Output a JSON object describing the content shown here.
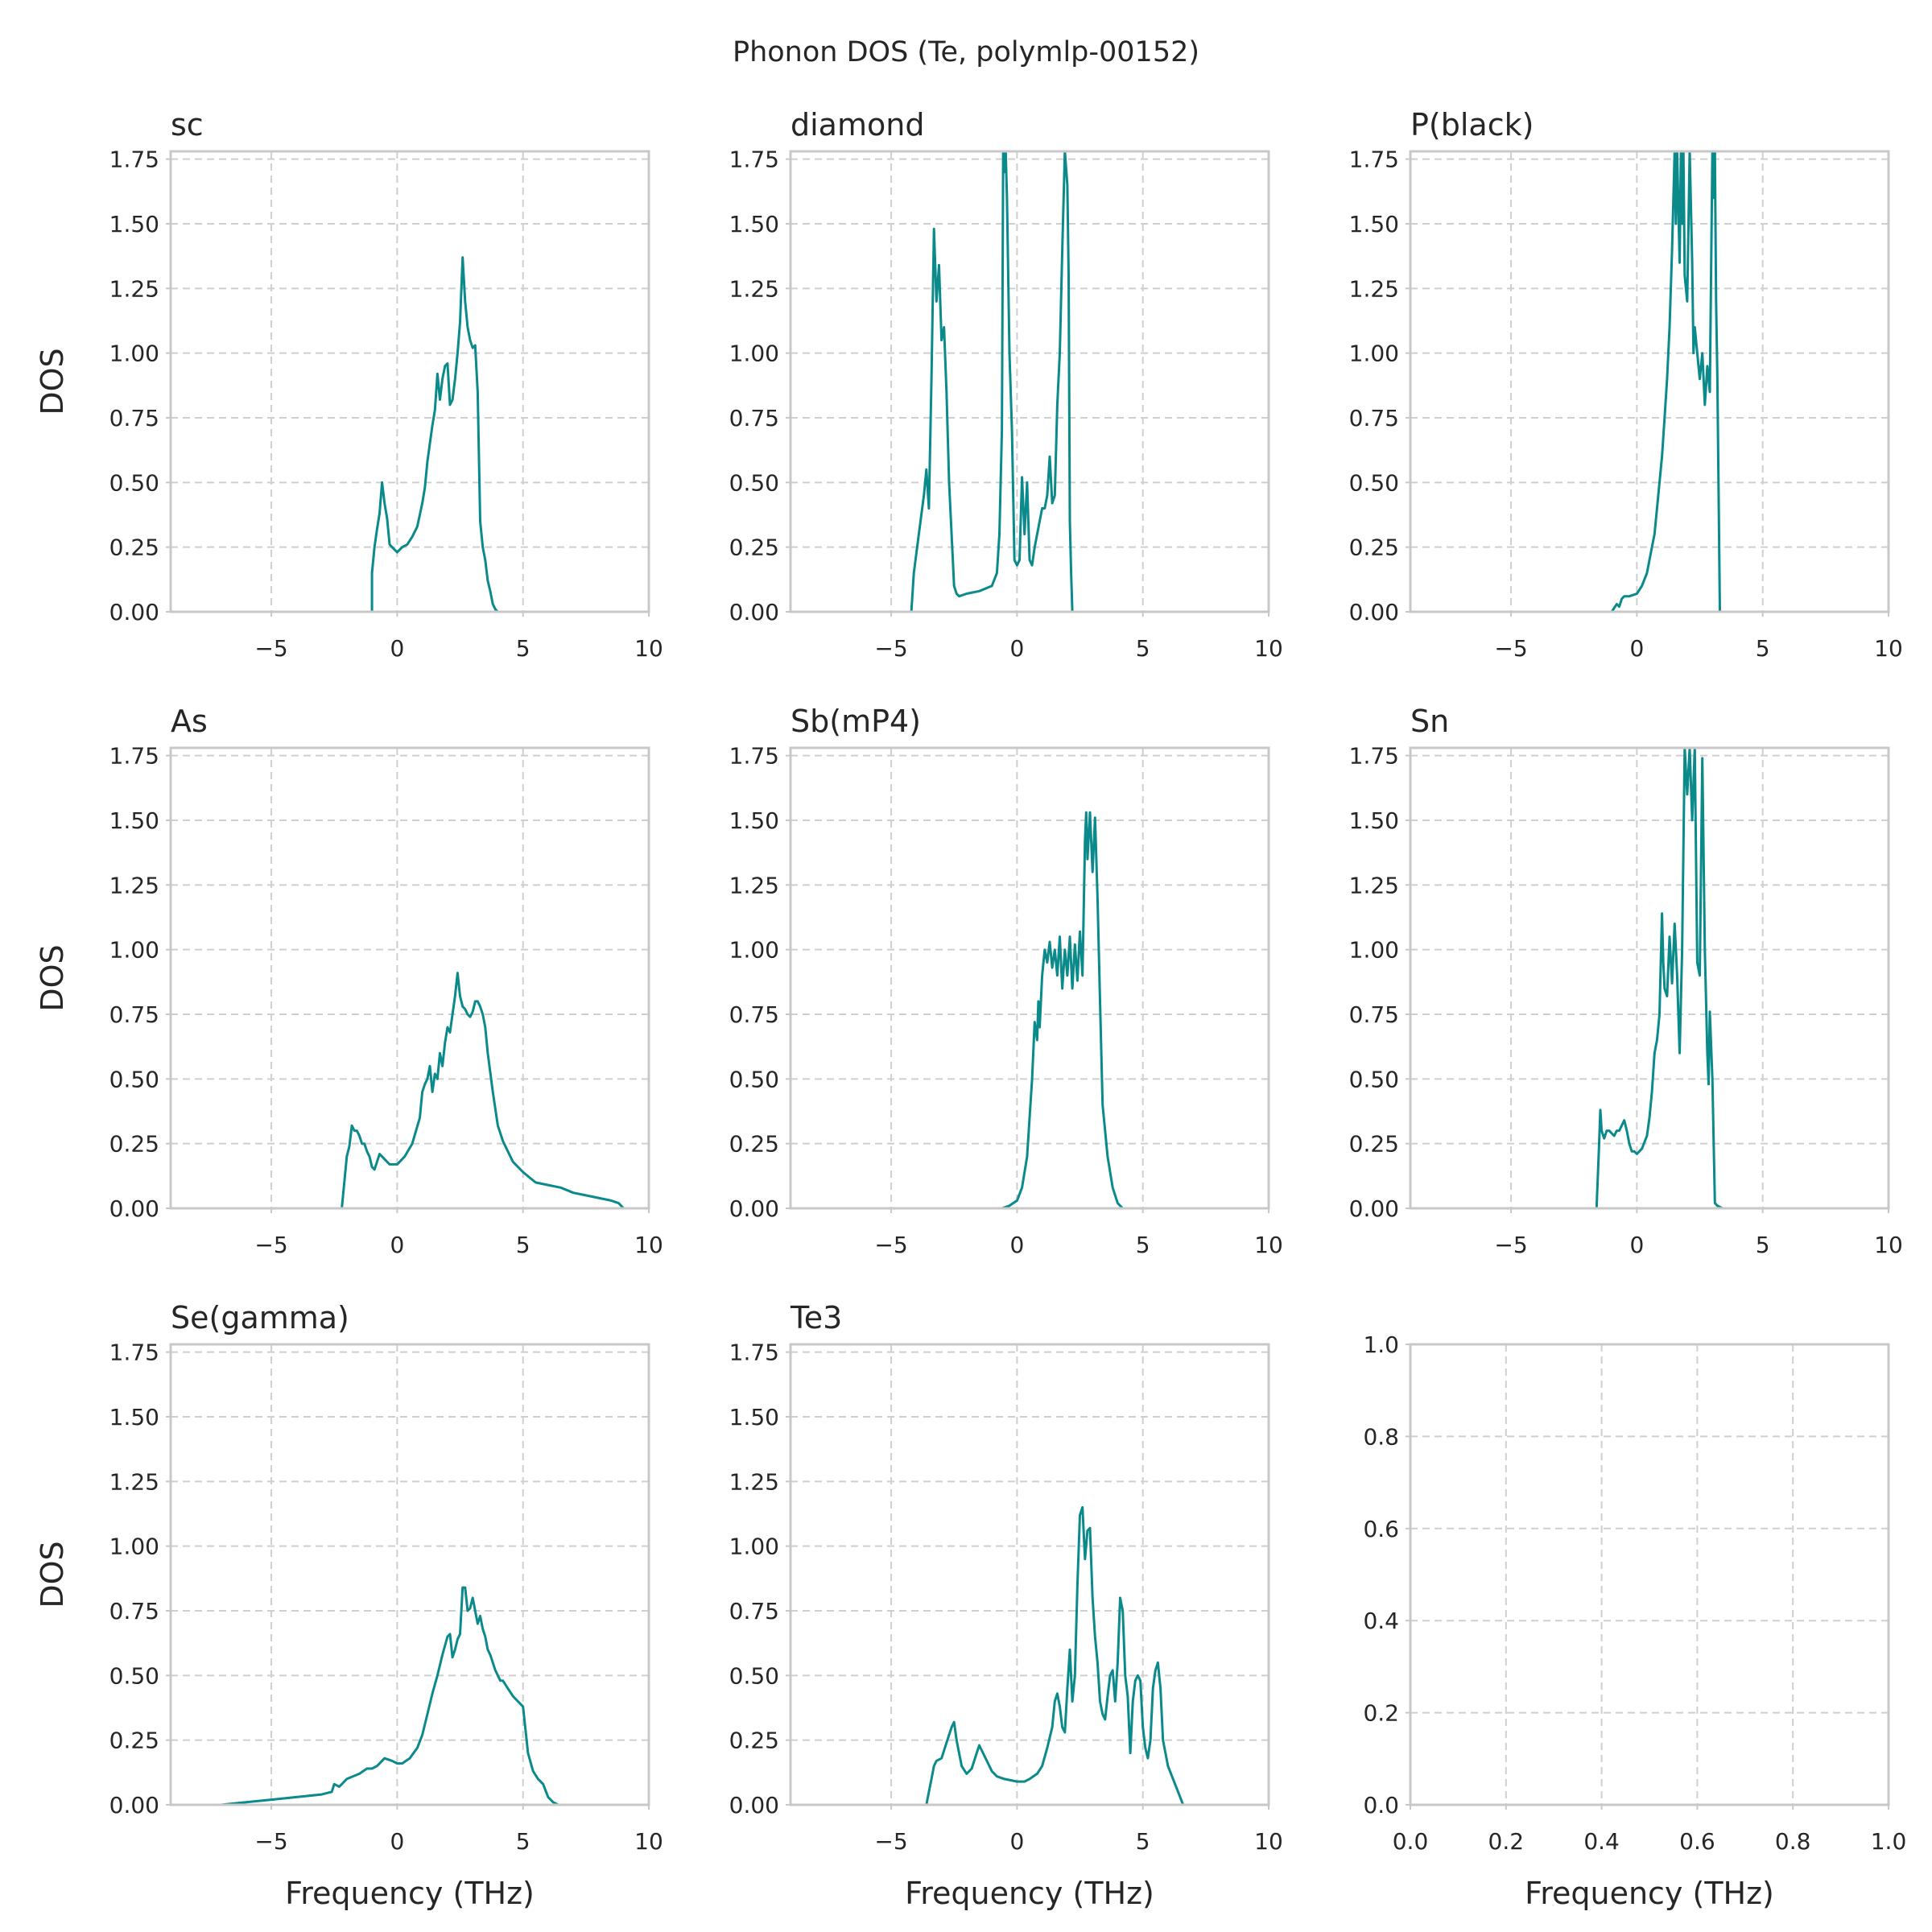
{
  "figure_title": "Phonon DOS (Te, polymlp-00152)",
  "colors": {
    "line": "#0a8a8a",
    "grid": "#cfcfcf",
    "frame": "#c8c8c8",
    "text": "#262626"
  },
  "chart_data": [
    {
      "type": "line",
      "title": "sc",
      "xlabel": "",
      "ylabel": "DOS",
      "xlim": [
        -9,
        10
      ],
      "ylim": [
        0,
        1.78
      ],
      "xticks": [
        -5,
        0,
        5,
        10
      ],
      "yticks": [
        0,
        0.25,
        0.5,
        0.75,
        1.0,
        1.25,
        1.5,
        1.75
      ],
      "xtick_labels": [
        "−5",
        "0",
        "5",
        "10"
      ],
      "ytick_labels": [
        "0.00",
        "0.25",
        "0.50",
        "0.75",
        "1.00",
        "1.25",
        "1.50",
        "1.75"
      ],
      "x": [
        -1.6,
        -1.0,
        -1.0,
        -0.9,
        -0.8,
        -0.7,
        -0.6,
        -0.5,
        -0.4,
        -0.3,
        -0.2,
        0.0,
        0.2,
        0.4,
        0.6,
        0.8,
        1.0,
        1.1,
        1.2,
        1.3,
        1.4,
        1.5,
        1.6,
        1.7,
        1.8,
        1.9,
        2.0,
        2.1,
        2.2,
        2.3,
        2.4,
        2.5,
        2.6,
        2.7,
        2.8,
        2.9,
        3.0,
        3.1,
        3.2,
        3.3,
        3.35,
        3.4,
        3.5,
        3.6,
        3.7,
        3.8,
        3.9,
        4.0,
        4.5
      ],
      "y": [
        0.0,
        0.0,
        0.15,
        0.25,
        0.32,
        0.38,
        0.5,
        0.42,
        0.36,
        0.26,
        0.25,
        0.23,
        0.25,
        0.26,
        0.29,
        0.33,
        0.42,
        0.48,
        0.58,
        0.65,
        0.72,
        0.78,
        0.92,
        0.82,
        0.9,
        0.95,
        0.96,
        0.8,
        0.82,
        0.9,
        1.0,
        1.12,
        1.37,
        1.2,
        1.1,
        1.05,
        1.02,
        1.03,
        0.85,
        0.35,
        0.3,
        0.25,
        0.2,
        0.12,
        0.08,
        0.03,
        0.01,
        0.0,
        0.0
      ]
    },
    {
      "type": "line",
      "title": "diamond",
      "xlabel": "",
      "ylabel": "",
      "xlim": [
        -9,
        10
      ],
      "ylim": [
        0,
        1.78
      ],
      "xticks": [
        -5,
        0,
        5,
        10
      ],
      "yticks": [
        0,
        0.25,
        0.5,
        0.75,
        1.0,
        1.25,
        1.5,
        1.75
      ],
      "xtick_labels": [
        "−5",
        "0",
        "5",
        "10"
      ],
      "ytick_labels": [
        "0.00",
        "0.25",
        "0.50",
        "0.75",
        "1.00",
        "1.25",
        "1.50",
        "1.75"
      ],
      "x": [
        -5.0,
        -4.2,
        -4.1,
        -3.9,
        -3.7,
        -3.6,
        -3.5,
        -3.4,
        -3.3,
        -3.2,
        -3.1,
        -3.0,
        -2.9,
        -2.8,
        -2.7,
        -2.6,
        -2.5,
        -2.4,
        -2.3,
        -2.0,
        -1.5,
        -1.0,
        -0.8,
        -0.7,
        -0.6,
        -0.55,
        -0.5,
        -0.45,
        -0.4,
        -0.3,
        -0.2,
        -0.1,
        0.0,
        0.1,
        0.2,
        0.3,
        0.4,
        0.5,
        0.6,
        0.7,
        0.8,
        0.9,
        1.0,
        1.1,
        1.2,
        1.3,
        1.4,
        1.5,
        1.6,
        1.7,
        1.8,
        1.9,
        2.0,
        2.05,
        2.1,
        2.15,
        2.2,
        2.3,
        2.8
      ],
      "y": [
        0.0,
        0.0,
        0.15,
        0.3,
        0.45,
        0.55,
        0.4,
        0.9,
        1.48,
        1.2,
        1.34,
        1.05,
        1.1,
        0.85,
        0.5,
        0.3,
        0.1,
        0.07,
        0.06,
        0.07,
        0.08,
        0.1,
        0.15,
        0.3,
        0.7,
        1.78,
        1.7,
        1.78,
        1.6,
        1.0,
        0.7,
        0.2,
        0.18,
        0.2,
        0.52,
        0.3,
        0.5,
        0.2,
        0.18,
        0.25,
        0.3,
        0.35,
        0.4,
        0.4,
        0.45,
        0.6,
        0.42,
        0.45,
        0.8,
        1.0,
        1.4,
        1.78,
        1.65,
        1.3,
        0.35,
        0.15,
        0.0,
        0.0,
        0.0
      ]
    },
    {
      "type": "line",
      "title": "P(black)",
      "xlabel": "",
      "ylabel": "",
      "xlim": [
        -9,
        10
      ],
      "ylim": [
        0,
        1.78
      ],
      "xticks": [
        -5,
        0,
        5,
        10
      ],
      "yticks": [
        0,
        0.25,
        0.5,
        0.75,
        1.0,
        1.25,
        1.5,
        1.75
      ],
      "xtick_labels": [
        "−5",
        "0",
        "5",
        "10"
      ],
      "ytick_labels": [
        "0.00",
        "0.25",
        "0.50",
        "0.75",
        "1.00",
        "1.25",
        "1.50",
        "1.75"
      ],
      "x": [
        -1.5,
        -1.0,
        -0.8,
        -0.7,
        -0.6,
        -0.5,
        -0.3,
        0.0,
        0.2,
        0.4,
        0.5,
        0.6,
        0.7,
        0.8,
        0.9,
        1.0,
        1.1,
        1.2,
        1.3,
        1.4,
        1.5,
        1.55,
        1.6,
        1.7,
        1.75,
        1.8,
        1.85,
        1.9,
        2.0,
        2.1,
        2.2,
        2.25,
        2.3,
        2.4,
        2.5,
        2.6,
        2.7,
        2.8,
        2.9,
        3.0,
        3.05,
        3.1,
        3.15,
        3.2,
        3.3,
        3.4,
        3.5,
        4.0
      ],
      "y": [
        0.0,
        0.0,
        0.03,
        0.02,
        0.05,
        0.06,
        0.06,
        0.07,
        0.1,
        0.15,
        0.2,
        0.25,
        0.3,
        0.4,
        0.5,
        0.6,
        0.75,
        0.9,
        1.1,
        1.4,
        1.78,
        1.5,
        1.78,
        1.35,
        1.78,
        1.5,
        1.78,
        1.3,
        1.2,
        1.78,
        1.35,
        1.0,
        1.1,
        1.0,
        0.9,
        1.0,
        0.8,
        0.95,
        0.85,
        1.78,
        1.6,
        1.78,
        1.2,
        0.9,
        0.0,
        0.0,
        0.0,
        0.0
      ]
    },
    {
      "type": "line",
      "title": "As",
      "xlabel": "",
      "ylabel": "DOS",
      "xlim": [
        -9,
        10
      ],
      "ylim": [
        0,
        1.78
      ],
      "xticks": [
        -5,
        0,
        5,
        10
      ],
      "yticks": [
        0,
        0.25,
        0.5,
        0.75,
        1.0,
        1.25,
        1.5,
        1.75
      ],
      "xtick_labels": [
        "−5",
        "0",
        "5",
        "10"
      ],
      "ytick_labels": [
        "0.00",
        "0.25",
        "0.50",
        "0.75",
        "1.00",
        "1.25",
        "1.50",
        "1.75"
      ],
      "x": [
        -3.2,
        -2.2,
        -2.1,
        -2.0,
        -1.9,
        -1.8,
        -1.7,
        -1.6,
        -1.5,
        -1.4,
        -1.3,
        -1.2,
        -1.1,
        -1.0,
        -0.9,
        -0.8,
        -0.7,
        -0.6,
        -0.5,
        -0.3,
        0.0,
        0.3,
        0.6,
        0.9,
        1.0,
        1.1,
        1.2,
        1.3,
        1.4,
        1.5,
        1.6,
        1.7,
        1.8,
        1.9,
        2.0,
        2.1,
        2.2,
        2.3,
        2.4,
        2.5,
        2.6,
        2.7,
        2.8,
        2.9,
        3.0,
        3.1,
        3.2,
        3.3,
        3.4,
        3.5,
        3.6,
        3.8,
        4.0,
        4.2,
        4.4,
        4.6,
        4.8,
        5.0,
        5.5,
        6.0,
        6.5,
        7.0,
        7.5,
        8.0,
        8.5,
        8.8,
        9.0,
        10.0
      ],
      "y": [
        0.0,
        0.0,
        0.1,
        0.2,
        0.24,
        0.32,
        0.3,
        0.3,
        0.28,
        0.25,
        0.25,
        0.22,
        0.2,
        0.16,
        0.15,
        0.18,
        0.21,
        0.2,
        0.19,
        0.17,
        0.17,
        0.2,
        0.25,
        0.35,
        0.45,
        0.48,
        0.5,
        0.55,
        0.45,
        0.52,
        0.5,
        0.6,
        0.55,
        0.64,
        0.7,
        0.68,
        0.75,
        0.82,
        0.91,
        0.82,
        0.78,
        0.77,
        0.75,
        0.74,
        0.76,
        0.8,
        0.8,
        0.78,
        0.75,
        0.7,
        0.6,
        0.45,
        0.32,
        0.26,
        0.22,
        0.18,
        0.16,
        0.14,
        0.1,
        0.09,
        0.08,
        0.06,
        0.05,
        0.04,
        0.03,
        0.02,
        0.0,
        0.0
      ]
    },
    {
      "type": "line",
      "title": "Sb(mP4)",
      "xlabel": "",
      "ylabel": "",
      "xlim": [
        -9,
        10
      ],
      "ylim": [
        0,
        1.78
      ],
      "xticks": [
        -5,
        0,
        5,
        10
      ],
      "yticks": [
        0,
        0.25,
        0.5,
        0.75,
        1.0,
        1.25,
        1.5,
        1.75
      ],
      "xtick_labels": [
        "−5",
        "0",
        "5",
        "10"
      ],
      "ytick_labels": [
        "0.00",
        "0.25",
        "0.50",
        "0.75",
        "1.00",
        "1.25",
        "1.50",
        "1.75"
      ],
      "x": [
        -0.6,
        -0.3,
        0.0,
        0.2,
        0.4,
        0.5,
        0.6,
        0.7,
        0.8,
        0.85,
        0.9,
        1.0,
        1.1,
        1.2,
        1.3,
        1.4,
        1.5,
        1.6,
        1.7,
        1.8,
        1.9,
        2.0,
        2.1,
        2.2,
        2.3,
        2.4,
        2.5,
        2.6,
        2.7,
        2.75,
        2.8,
        2.9,
        3.0,
        3.1,
        3.2,
        3.3,
        3.4,
        3.6,
        3.8,
        4.0,
        4.2,
        4.4
      ],
      "y": [
        0.0,
        0.01,
        0.03,
        0.08,
        0.2,
        0.35,
        0.5,
        0.72,
        0.65,
        0.8,
        0.7,
        0.9,
        1.0,
        0.95,
        1.03,
        0.93,
        1.0,
        0.9,
        1.05,
        0.85,
        1.0,
        0.9,
        1.05,
        0.85,
        1.02,
        0.88,
        1.07,
        0.9,
        1.42,
        1.53,
        1.35,
        1.53,
        1.3,
        1.51,
        1.2,
        0.8,
        0.4,
        0.2,
        0.08,
        0.02,
        0.0,
        0.0
      ]
    },
    {
      "type": "line",
      "title": "Sn",
      "xlabel": "",
      "ylabel": "",
      "xlim": [
        -9,
        10
      ],
      "ylim": [
        0,
        1.78
      ],
      "xticks": [
        -5,
        0,
        5,
        10
      ],
      "yticks": [
        0,
        0.25,
        0.5,
        0.75,
        1.0,
        1.25,
        1.5,
        1.75
      ],
      "xtick_labels": [
        "−5",
        "0",
        "5",
        "10"
      ],
      "ytick_labels": [
        "0.00",
        "0.25",
        "0.50",
        "0.75",
        "1.00",
        "1.25",
        "1.50",
        "1.75"
      ],
      "x": [
        -2.0,
        -1.6,
        -1.5,
        -1.45,
        -1.4,
        -1.3,
        -1.2,
        -1.1,
        -1.0,
        -0.9,
        -0.8,
        -0.7,
        -0.6,
        -0.5,
        -0.4,
        -0.3,
        -0.2,
        -0.1,
        0.0,
        0.2,
        0.4,
        0.5,
        0.6,
        0.7,
        0.8,
        0.9,
        1.0,
        1.05,
        1.1,
        1.2,
        1.3,
        1.4,
        1.5,
        1.6,
        1.7,
        1.8,
        1.9,
        2.0,
        2.1,
        2.2,
        2.3,
        2.4,
        2.5,
        2.6,
        2.7,
        2.8,
        2.85,
        2.9,
        3.0,
        3.1,
        3.2,
        3.4,
        3.6
      ],
      "y": [
        0.0,
        0.0,
        0.25,
        0.38,
        0.3,
        0.27,
        0.3,
        0.3,
        0.29,
        0.28,
        0.3,
        0.3,
        0.32,
        0.34,
        0.3,
        0.25,
        0.22,
        0.22,
        0.21,
        0.23,
        0.28,
        0.35,
        0.45,
        0.6,
        0.65,
        0.75,
        1.14,
        0.95,
        0.85,
        0.82,
        1.05,
        0.87,
        1.1,
        0.9,
        0.6,
        1.0,
        1.78,
        1.6,
        1.78,
        1.5,
        1.78,
        0.95,
        0.9,
        1.74,
        1.0,
        0.6,
        0.48,
        0.76,
        0.5,
        0.02,
        0.01,
        0.0,
        0.0
      ]
    },
    {
      "type": "line",
      "title": "Se(gamma)",
      "xlabel": "Frequency (THz)",
      "ylabel": "DOS",
      "xlim": [
        -9,
        10
      ],
      "ylim": [
        0,
        1.78
      ],
      "xticks": [
        -5,
        0,
        5,
        10
      ],
      "yticks": [
        0,
        0.25,
        0.5,
        0.75,
        1.0,
        1.25,
        1.5,
        1.75
      ],
      "xtick_labels": [
        "−5",
        "0",
        "5",
        "10"
      ],
      "ytick_labels": [
        "0.00",
        "0.25",
        "0.50",
        "0.75",
        "1.00",
        "1.25",
        "1.50",
        "1.75"
      ],
      "x": [
        -8.3,
        -7.0,
        -6.0,
        -5.0,
        -4.0,
        -3.0,
        -2.6,
        -2.5,
        -2.3,
        -2.0,
        -1.5,
        -1.2,
        -1.0,
        -0.8,
        -0.5,
        -0.2,
        0.0,
        0.2,
        0.5,
        0.8,
        1.0,
        1.2,
        1.4,
        1.6,
        1.8,
        2.0,
        2.1,
        2.2,
        2.3,
        2.4,
        2.5,
        2.6,
        2.7,
        2.8,
        2.9,
        3.0,
        3.1,
        3.2,
        3.3,
        3.4,
        3.5,
        3.6,
        3.7,
        3.8,
        3.9,
        4.0,
        4.1,
        4.2,
        4.4,
        4.6,
        4.8,
        5.0,
        5.2,
        5.4,
        5.6,
        5.8,
        6.0,
        6.2,
        6.4,
        7.0,
        7.8
      ],
      "y": [
        0.0,
        0.0,
        0.01,
        0.02,
        0.03,
        0.04,
        0.05,
        0.08,
        0.07,
        0.1,
        0.12,
        0.14,
        0.14,
        0.15,
        0.18,
        0.17,
        0.16,
        0.16,
        0.18,
        0.22,
        0.27,
        0.35,
        0.43,
        0.5,
        0.58,
        0.65,
        0.66,
        0.57,
        0.6,
        0.64,
        0.66,
        0.84,
        0.84,
        0.75,
        0.76,
        0.8,
        0.75,
        0.7,
        0.73,
        0.68,
        0.65,
        0.6,
        0.58,
        0.55,
        0.52,
        0.5,
        0.48,
        0.48,
        0.45,
        0.42,
        0.4,
        0.38,
        0.2,
        0.13,
        0.1,
        0.08,
        0.03,
        0.01,
        0.0,
        0.0,
        0.0
      ]
    },
    {
      "type": "line",
      "title": "Te3",
      "xlabel": "Frequency (THz)",
      "ylabel": "",
      "xlim": [
        -9,
        10
      ],
      "ylim": [
        0,
        1.78
      ],
      "xticks": [
        -5,
        0,
        5,
        10
      ],
      "yticks": [
        0,
        0.25,
        0.5,
        0.75,
        1.0,
        1.25,
        1.5,
        1.75
      ],
      "xtick_labels": [
        "−5",
        "0",
        "5",
        "10"
      ],
      "ytick_labels": [
        "0.00",
        "0.25",
        "0.50",
        "0.75",
        "1.00",
        "1.25",
        "1.50",
        "1.75"
      ],
      "x": [
        -4.4,
        -3.6,
        -3.5,
        -3.4,
        -3.3,
        -3.2,
        -3.0,
        -2.8,
        -2.6,
        -2.5,
        -2.4,
        -2.2,
        -2.0,
        -1.8,
        -1.6,
        -1.5,
        -1.4,
        -1.2,
        -1.0,
        -0.8,
        -0.5,
        0.0,
        0.3,
        0.5,
        0.8,
        1.0,
        1.2,
        1.4,
        1.5,
        1.6,
        1.7,
        1.8,
        1.9,
        2.0,
        2.1,
        2.2,
        2.3,
        2.4,
        2.5,
        2.6,
        2.7,
        2.8,
        2.9,
        3.0,
        3.1,
        3.2,
        3.3,
        3.4,
        3.5,
        3.6,
        3.7,
        3.8,
        3.9,
        4.0,
        4.1,
        4.2,
        4.3,
        4.4,
        4.5,
        4.6,
        4.7,
        4.8,
        4.9,
        5.0,
        5.1,
        5.2,
        5.3,
        5.4,
        5.5,
        5.6,
        5.7,
        5.8,
        5.9,
        6.0,
        6.2,
        6.4,
        6.6,
        7.0,
        7.6
      ],
      "y": [
        0.0,
        0.0,
        0.05,
        0.1,
        0.15,
        0.17,
        0.18,
        0.24,
        0.3,
        0.32,
        0.25,
        0.15,
        0.12,
        0.14,
        0.2,
        0.23,
        0.21,
        0.17,
        0.13,
        0.11,
        0.1,
        0.09,
        0.09,
        0.1,
        0.12,
        0.15,
        0.22,
        0.3,
        0.4,
        0.43,
        0.38,
        0.3,
        0.28,
        0.45,
        0.6,
        0.4,
        0.5,
        0.85,
        1.12,
        1.15,
        0.95,
        1.06,
        1.07,
        0.8,
        0.65,
        0.55,
        0.4,
        0.35,
        0.33,
        0.42,
        0.5,
        0.52,
        0.4,
        0.55,
        0.8,
        0.75,
        0.5,
        0.42,
        0.2,
        0.4,
        0.48,
        0.5,
        0.48,
        0.3,
        0.22,
        0.18,
        0.25,
        0.45,
        0.52,
        0.55,
        0.45,
        0.25,
        0.2,
        0.15,
        0.1,
        0.05,
        0.0,
        0.0,
        0.0
      ]
    },
    {
      "type": "line",
      "title": "",
      "xlabel": "Frequency (THz)",
      "ylabel": "",
      "xlim": [
        0,
        1
      ],
      "ylim": [
        0,
        1
      ],
      "xticks": [
        0,
        0.2,
        0.4,
        0.6,
        0.8,
        1.0
      ],
      "yticks": [
        0,
        0.2,
        0.4,
        0.6,
        0.8,
        1.0
      ],
      "xtick_labels": [
        "0.0",
        "0.2",
        "0.4",
        "0.6",
        "0.8",
        "1.0"
      ],
      "ytick_labels": [
        "0.0",
        "0.2",
        "0.4",
        "0.6",
        "0.8",
        "1.0"
      ],
      "x": [],
      "y": []
    }
  ]
}
